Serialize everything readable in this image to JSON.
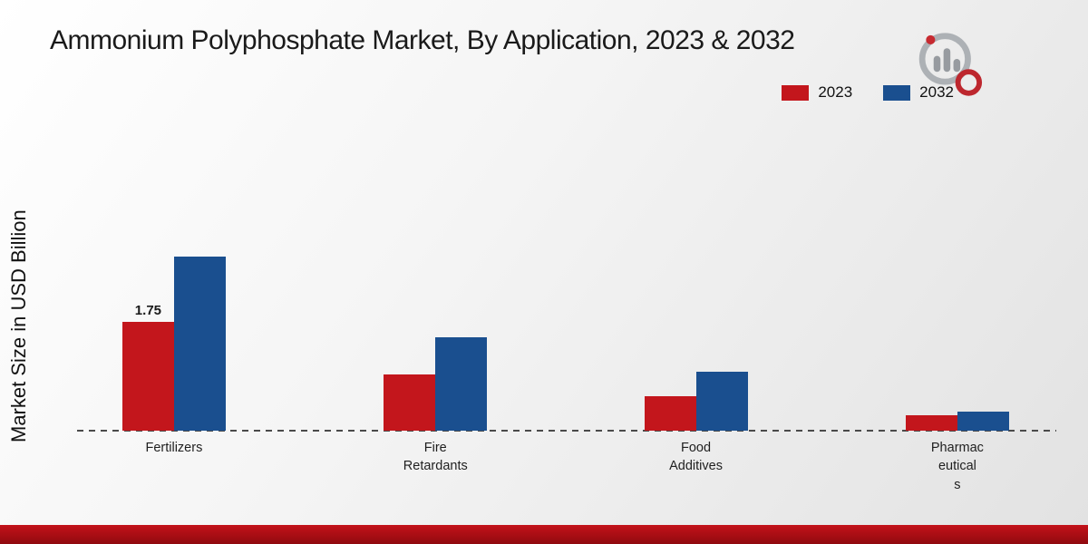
{
  "title": "Ammonium Polyphosphate Market, By Application, 2023 & 2032",
  "y_axis_label": "Market Size in USD Billion",
  "legend": [
    {
      "label": "2023",
      "color": "#c3161c"
    },
    {
      "label": "2032",
      "color": "#1a4f8f"
    }
  ],
  "chart_data": {
    "type": "bar",
    "title": "Ammonium Polyphosphate Market, By Application, 2023 & 2032",
    "xlabel": "",
    "ylabel": "Market Size in USD Billion",
    "categories": [
      "Fertilizers",
      "Fire Retardants",
      "Food Additives",
      "Pharmaceuticals"
    ],
    "category_display_lines": [
      [
        "Fertilizers"
      ],
      [
        "Fire",
        "Retardants"
      ],
      [
        "Food",
        "Additives"
      ],
      [
        "Pharmac",
        "eutical",
        "s"
      ]
    ],
    "series": [
      {
        "name": "2023",
        "color": "#c3161c",
        "values": [
          1.75,
          0.9,
          0.55,
          0.25
        ],
        "value_labels": [
          "1.75",
          "",
          "",
          ""
        ]
      },
      {
        "name": "2032",
        "color": "#1a4f8f",
        "values": [
          2.8,
          1.5,
          0.95,
          0.3
        ],
        "value_labels": [
          "",
          "",
          "",
          ""
        ]
      }
    ],
    "ylim": [
      0,
      3
    ],
    "grid": false,
    "legend_position": "top-right",
    "annotations": [
      {
        "text": "1.75",
        "series": "2023",
        "category": "Fertilizers"
      }
    ]
  }
}
